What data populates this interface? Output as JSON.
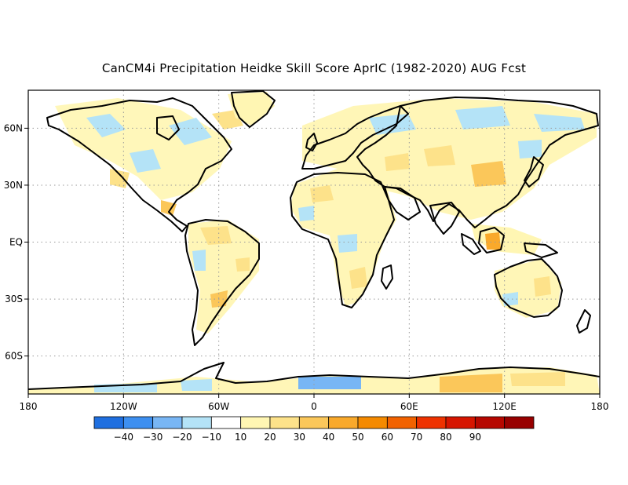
{
  "title": "CanCM4i Precipitation Heidke Skill Score AprIC (1982-2020) AUG Fcst",
  "map": {
    "projection": "equirectangular",
    "lon_range": [
      -180,
      180
    ],
    "lat_range": [
      -80,
      80
    ],
    "grid": "dotted",
    "lon_ticks": [
      {
        "value": -180,
        "label": "180"
      },
      {
        "value": -120,
        "label": "120W"
      },
      {
        "value": -60,
        "label": "60W"
      },
      {
        "value": 0,
        "label": "0"
      },
      {
        "value": 60,
        "label": "60E"
      },
      {
        "value": 120,
        "label": "120E"
      },
      {
        "value": 180,
        "label": "180"
      }
    ],
    "lat_ticks": [
      {
        "value": 60,
        "label": "60N"
      },
      {
        "value": 30,
        "label": "30N"
      },
      {
        "value": 0,
        "label": "EQ"
      },
      {
        "value": -30,
        "label": "30S"
      },
      {
        "value": -60,
        "label": "60S"
      }
    ]
  },
  "colorbar": {
    "bins": [
      {
        "color": "#1f6fe0"
      },
      {
        "color": "#3d8ff0"
      },
      {
        "color": "#78b6f5"
      },
      {
        "color": "#b4e3f7"
      },
      {
        "color": "#ffffff"
      },
      {
        "color": "#fff6b3"
      },
      {
        "color": "#fde28a"
      },
      {
        "color": "#fbc75a"
      },
      {
        "color": "#f9a92b"
      },
      {
        "color": "#f58a00"
      },
      {
        "color": "#f26200"
      },
      {
        "color": "#ee3200"
      },
      {
        "color": "#d61500"
      },
      {
        "color": "#b60700"
      },
      {
        "color": "#980000"
      }
    ],
    "labels": [
      "-40",
      "-30",
      "-20",
      "-10",
      "10",
      "20",
      "30",
      "40",
      "50",
      "60",
      "70",
      "80",
      "90"
    ]
  },
  "colors": {
    "coastline": "#000000",
    "gridline": "#9a9a9a",
    "positive_skill": "#fde28a",
    "negative_skill": "#b4e3f7",
    "high_skill": "#f9a92b"
  }
}
